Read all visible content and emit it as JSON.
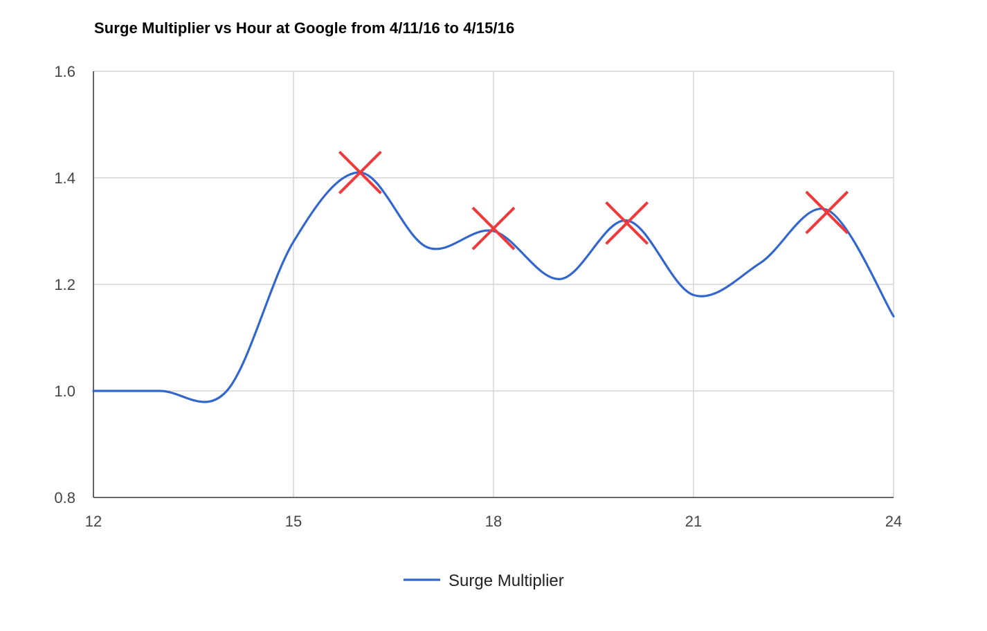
{
  "chart_data": {
    "type": "line",
    "title": "Surge Multiplier vs Hour at Google from 4/11/16 to 4/15/16",
    "xlabel": "",
    "ylabel": "",
    "xlim": [
      12,
      24
    ],
    "ylim": [
      0.8,
      1.6
    ],
    "x_ticks": [
      "12",
      "15",
      "18",
      "21",
      "24"
    ],
    "y_ticks": [
      "0.8",
      "1.0",
      "1.2",
      "1.4",
      "1.6"
    ],
    "grid": true,
    "legend_position": "bottom",
    "smooth": true,
    "series": [
      {
        "name": "Surge Multiplier",
        "color": "#3366cc",
        "x": [
          12,
          13,
          14,
          15,
          16,
          17,
          18,
          19,
          20,
          21,
          22,
          23,
          24
        ],
        "values": [
          1.0,
          1.0,
          1.0,
          1.28,
          1.41,
          1.27,
          1.3,
          1.21,
          1.32,
          1.18,
          1.24,
          1.34,
          1.14
        ]
      }
    ],
    "annotations": [
      {
        "type": "x-marker",
        "color": "#f0393b",
        "x": 16.0,
        "y": 1.41
      },
      {
        "type": "x-marker",
        "color": "#f0393b",
        "x": 18.0,
        "y": 1.305
      },
      {
        "type": "x-marker",
        "color": "#f0393b",
        "x": 20.0,
        "y": 1.315
      },
      {
        "type": "x-marker",
        "color": "#f0393b",
        "x": 23.0,
        "y": 1.335
      }
    ]
  }
}
